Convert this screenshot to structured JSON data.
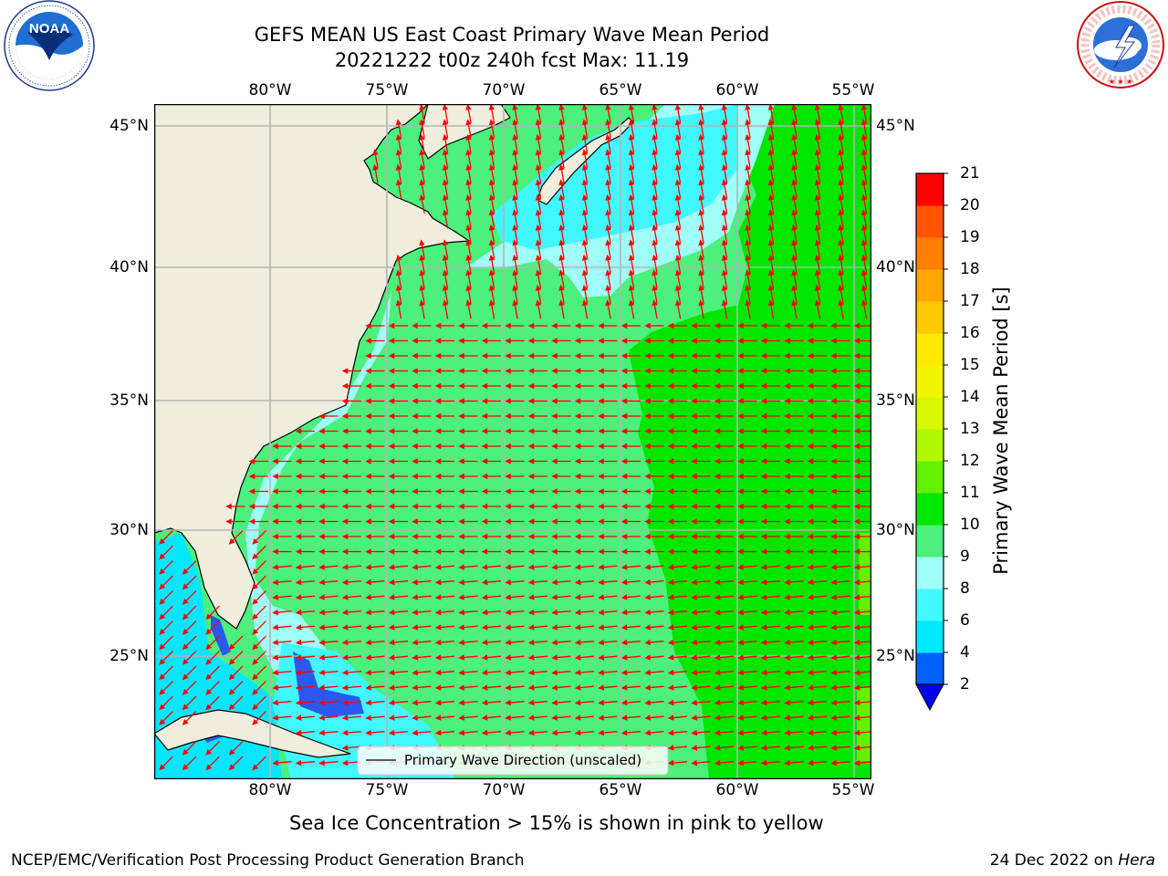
{
  "header": {
    "title_line1": "GEFS MEAN US East Coast Primary Wave Mean Period",
    "title_line2": "20221222 t00z 240h fcst   Max: 11.19"
  },
  "logos": {
    "noaa": {
      "icon": "noaa-logo-icon",
      "text": "NOAA",
      "ring_text": "NATIONAL OCEANIC AND ATMOSPHERIC ADMINISTRATION · U.S. DEPARTMENT OF COMMERCE"
    },
    "nws": {
      "icon": "nws-logo-icon",
      "ring_text": "NATIONAL WEATHER SERVICE"
    }
  },
  "map": {
    "lon_labels": [
      "80°W",
      "75°W",
      "70°W",
      "65°W",
      "60°W",
      "55°W"
    ],
    "lat_labels": [
      "45°N",
      "40°N",
      "35°N",
      "30°N",
      "25°N"
    ],
    "legend_text": "Primary Wave Direction (unscaled)",
    "vector_color": "#ff0000",
    "land_color": "#efeddc",
    "gridline_color": "#b4b4b4"
  },
  "colorbar": {
    "label": "Primary Wave Mean Period [s]",
    "ticks": [
      "2",
      "4",
      "6",
      "8",
      "9",
      "10",
      "11",
      "12",
      "13",
      "14",
      "15",
      "16",
      "17",
      "18",
      "19",
      "20",
      "21"
    ],
    "colors": [
      "#0060ff",
      "#00e8ff",
      "#40f8ff",
      "#a0fff8",
      "#4cf07c",
      "#00e600",
      "#64f000",
      "#b0f800",
      "#d8f800",
      "#f4f400",
      "#ffea00",
      "#ffc800",
      "#ffa600",
      "#ff8000",
      "#ff5400",
      "#ff0000"
    ],
    "under_color": "#0000ee"
  },
  "notes": {
    "sea_ice": "Sea Ice Concentration > 15% is shown in pink to yellow"
  },
  "footer": {
    "left": "NCEP/EMC/Verification Post Processing Product Generation Branch",
    "right_prefix": "24 Dec 2022 on ",
    "right_machine": "Hera"
  }
}
